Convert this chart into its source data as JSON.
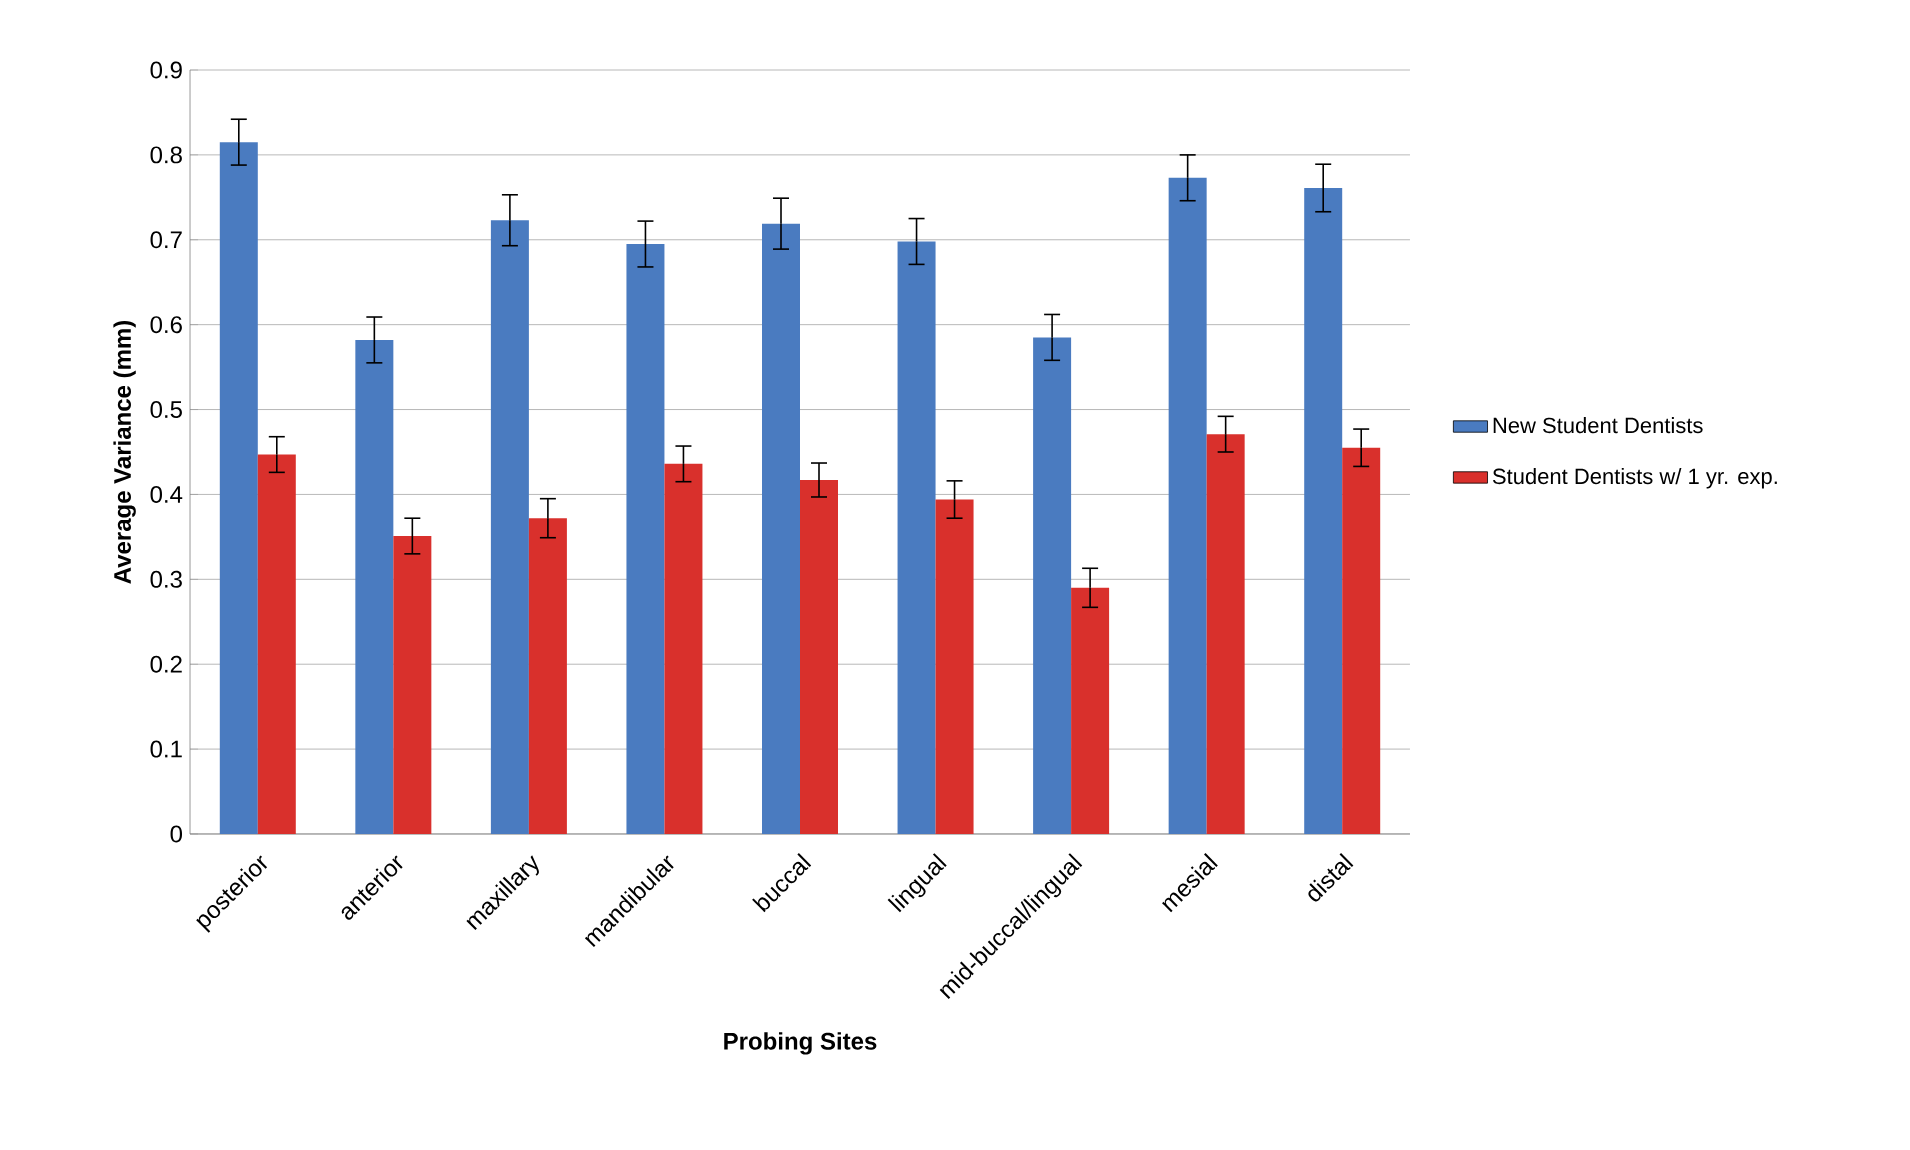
{
  "chart_data": {
    "type": "bar",
    "xlabel": "Probing Sites",
    "ylabel": "Average Variance (mm)",
    "categories": [
      "posterior",
      "anterior",
      "maxillary",
      "mandibular",
      "buccal",
      "lingual",
      "mid-buccal/lingual",
      "mesial",
      "distal"
    ],
    "series": [
      {
        "name": "New Student Dentists",
        "color": "#4a7bc0",
        "values": [
          0.815,
          0.582,
          0.723,
          0.695,
          0.719,
          0.698,
          0.585,
          0.773,
          0.761
        ],
        "errors": [
          0.027,
          0.027,
          0.03,
          0.027,
          0.03,
          0.027,
          0.027,
          0.027,
          0.028
        ]
      },
      {
        "name": "Student Dentists w/ 1 yr. exp.",
        "color": "#d9302c",
        "values": [
          0.447,
          0.351,
          0.372,
          0.436,
          0.417,
          0.394,
          0.29,
          0.471,
          0.455
        ],
        "errors": [
          0.021,
          0.021,
          0.023,
          0.021,
          0.02,
          0.022,
          0.023,
          0.021,
          0.022
        ]
      }
    ],
    "ylim": [
      0,
      0.9
    ],
    "yticks": [
      0,
      0.1,
      0.2,
      0.3,
      0.4,
      0.5,
      0.6,
      0.7,
      0.8,
      0.9
    ],
    "grid": "y",
    "legend": "right"
  }
}
